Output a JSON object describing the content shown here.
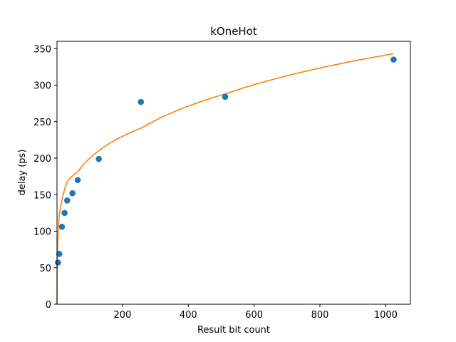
{
  "chart_data": {
    "type": "scatter",
    "title": "kOneHot",
    "xlabel": "Result bit count",
    "ylabel": "delay (ps)",
    "xlim": [
      1,
      1075
    ],
    "ylim": [
      0,
      360
    ],
    "x_ticks": [
      200,
      400,
      600,
      800,
      1000
    ],
    "y_ticks": [
      0,
      50,
      100,
      150,
      200,
      250,
      300,
      350
    ],
    "grid": false,
    "colors": {
      "points": "#1f77b4",
      "fit": "#ff7f0e"
    },
    "series": [
      {
        "kind": "points",
        "x": [
          4,
          8,
          16,
          24,
          32,
          48,
          64,
          128,
          256,
          512,
          1024
        ],
        "y": [
          57,
          69,
          106,
          125,
          142,
          152,
          170,
          199,
          277,
          284,
          335
        ]
      },
      {
        "kind": "fit-line",
        "x": [
          1,
          2,
          4,
          8,
          16,
          32,
          64,
          128,
          256,
          512,
          1024
        ],
        "y": [
          0,
          65,
          92,
          122,
          142,
          168,
          181,
          210,
          241,
          288,
          343
        ]
      }
    ]
  }
}
